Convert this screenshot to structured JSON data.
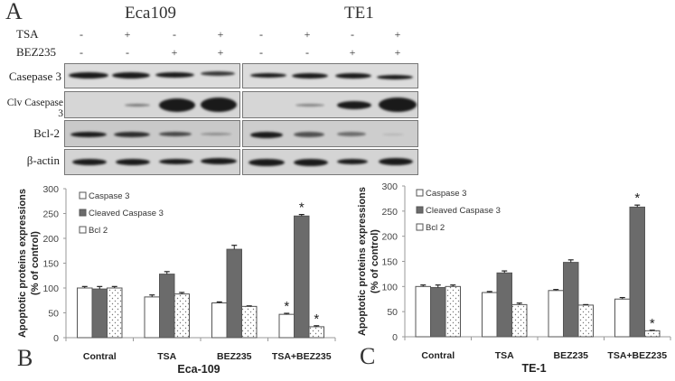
{
  "panel_labels": {
    "A": "A",
    "B": "B",
    "C": "C"
  },
  "western_blot": {
    "cell_lines": [
      "Eca109",
      "TE1"
    ],
    "treatments": [
      {
        "name": "TSA",
        "signs": [
          "-",
          "+",
          "-",
          "+"
        ]
      },
      {
        "name": "BEZ235",
        "signs": [
          "-",
          "-",
          "+",
          "+"
        ]
      }
    ],
    "row_labels": [
      "Casepase 3",
      "Clv Casepase 3",
      "Bcl-2",
      "β-actin"
    ]
  },
  "chart_data": [
    {
      "type": "bar",
      "title": "Eca-109",
      "xlabel": "Eca-109",
      "ylabel": "Apoptotic proteins expressions (% of control)",
      "ylim": [
        0,
        300
      ],
      "yticks": [
        0,
        50,
        100,
        150,
        200,
        250,
        300
      ],
      "categories": [
        "Contral",
        "TSA",
        "BEZ235",
        "TSA+BEZ235"
      ],
      "series": [
        {
          "name": "Caspase 3",
          "fill": "white",
          "values": [
            100,
            82,
            70,
            47
          ],
          "errors": [
            3,
            4,
            2,
            2
          ],
          "significant": [
            false,
            false,
            false,
            true
          ]
        },
        {
          "name": "Cleaved Caspase 3",
          "fill": "#6b6b6b",
          "values": [
            98,
            128,
            178,
            245
          ],
          "errors": [
            5,
            5,
            8,
            3
          ],
          "significant": [
            false,
            false,
            false,
            true
          ]
        },
        {
          "name": "Bcl 2",
          "fill": "dotted",
          "values": [
            100,
            88,
            63,
            22
          ],
          "errors": [
            3,
            3,
            1,
            2
          ],
          "significant": [
            false,
            false,
            false,
            true
          ]
        }
      ],
      "legend": [
        "Caspase 3",
        "Cleaved Caspase 3",
        "Bcl 2"
      ],
      "legend_position": "upper-left",
      "annotations": [
        "*"
      ],
      "grid": false
    },
    {
      "type": "bar",
      "title": "TE-1",
      "xlabel": "TE-1",
      "ylabel": "Apoptotic proteins expressions (% of control)",
      "ylim": [
        0,
        300
      ],
      "yticks": [
        0,
        50,
        100,
        150,
        200,
        250,
        300
      ],
      "categories": [
        "Contral",
        "TSA",
        "BEZ235",
        "TSA+BEZ235"
      ],
      "series": [
        {
          "name": "Caspase 3",
          "fill": "white",
          "values": [
            100,
            88,
            92,
            75
          ],
          "errors": [
            3,
            2,
            2,
            3
          ],
          "significant": [
            false,
            false,
            false,
            false
          ]
        },
        {
          "name": "Cleaved Caspase 3",
          "fill": "#6b6b6b",
          "values": [
            98,
            127,
            148,
            258
          ],
          "errors": [
            5,
            4,
            5,
            4
          ],
          "significant": [
            false,
            false,
            false,
            true
          ]
        },
        {
          "name": "Bcl 2",
          "fill": "dotted",
          "values": [
            100,
            64,
            63,
            12
          ],
          "errors": [
            3,
            3,
            1,
            1
          ],
          "significant": [
            false,
            false,
            false,
            true
          ]
        }
      ],
      "legend": [
        "Caspase 3",
        "Cleaved Caspase 3",
        "Bcl 2"
      ],
      "legend_position": "upper-left",
      "annotations": [
        "*"
      ],
      "grid": false
    }
  ]
}
